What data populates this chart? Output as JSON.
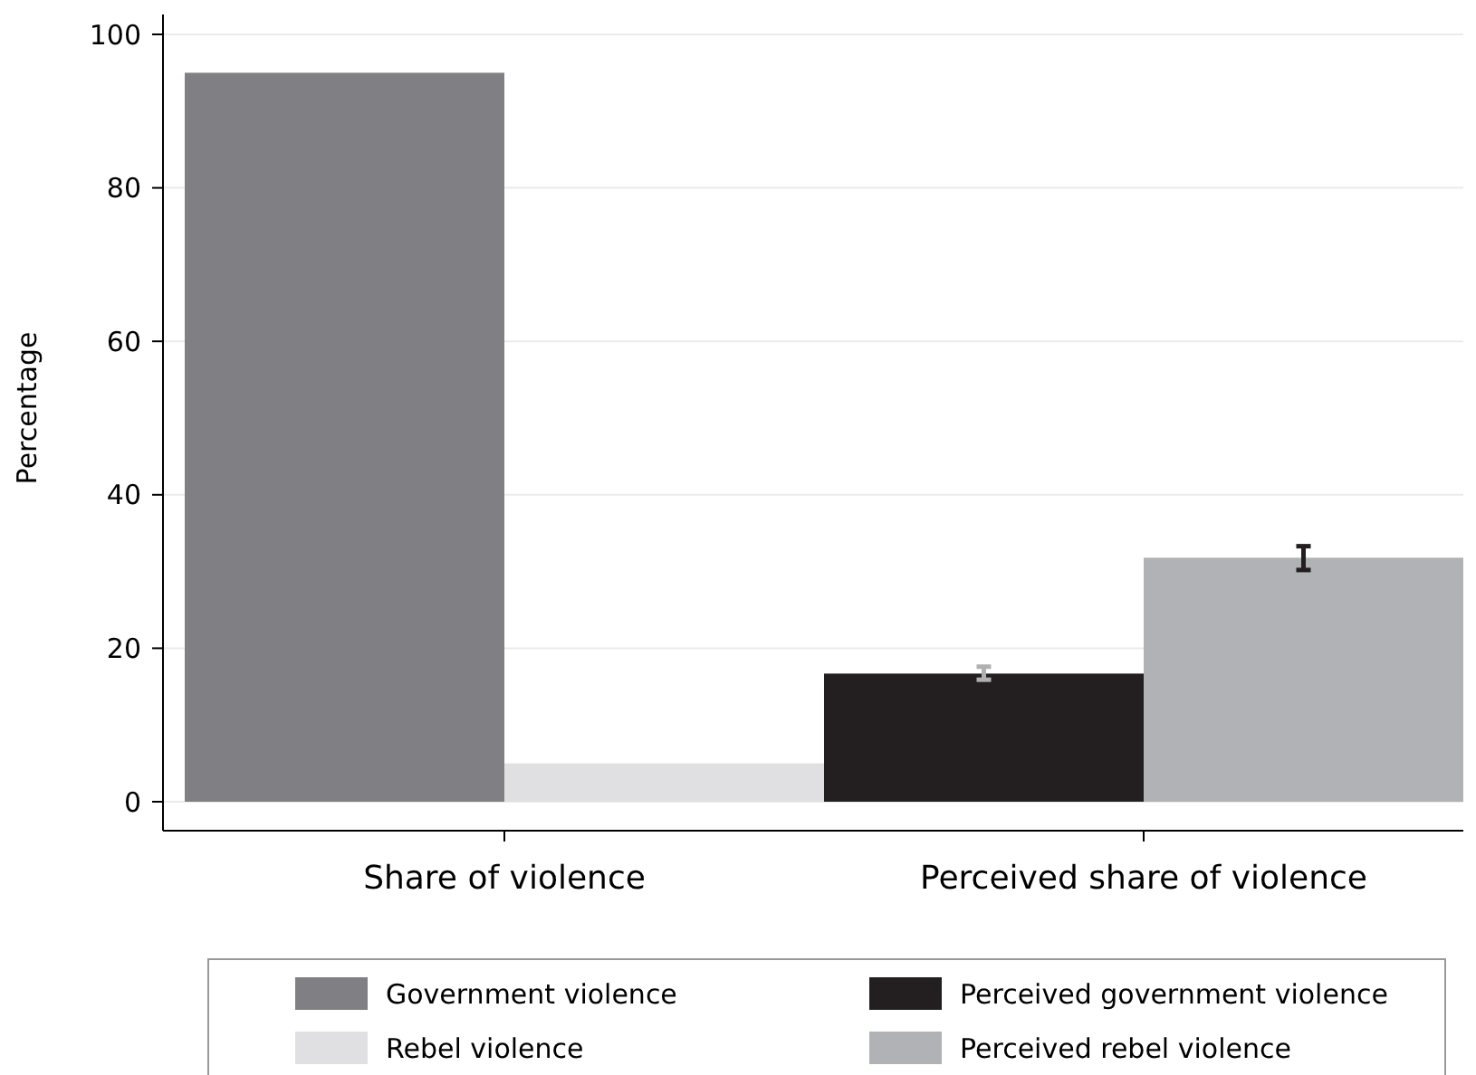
{
  "chart_data": {
    "type": "bar",
    "ylabel": "Percentage",
    "categories": [
      "Share of violence",
      "Perceived share of violence"
    ],
    "series": [
      {
        "name": "Government violence",
        "color": "#808084",
        "values": [
          95,
          null
        ]
      },
      {
        "name": "Rebel violence",
        "color": "#e0e0e2",
        "values": [
          5,
          null
        ]
      },
      {
        "name": "Perceived government violence",
        "color": "#231f20",
        "values": [
          null,
          16.7
        ],
        "errors": [
          null,
          [
            15.9,
            17.6
          ]
        ]
      },
      {
        "name": "Perceived rebel violence",
        "color": "#b1b2b5",
        "values": [
          null,
          31.8
        ],
        "errors": [
          null,
          [
            30.2,
            33.3
          ]
        ]
      }
    ],
    "ylim": [
      0,
      100
    ],
    "yticks": [
      0,
      20,
      40,
      60,
      80,
      100
    ],
    "grid": "y",
    "legend": "bottom"
  }
}
